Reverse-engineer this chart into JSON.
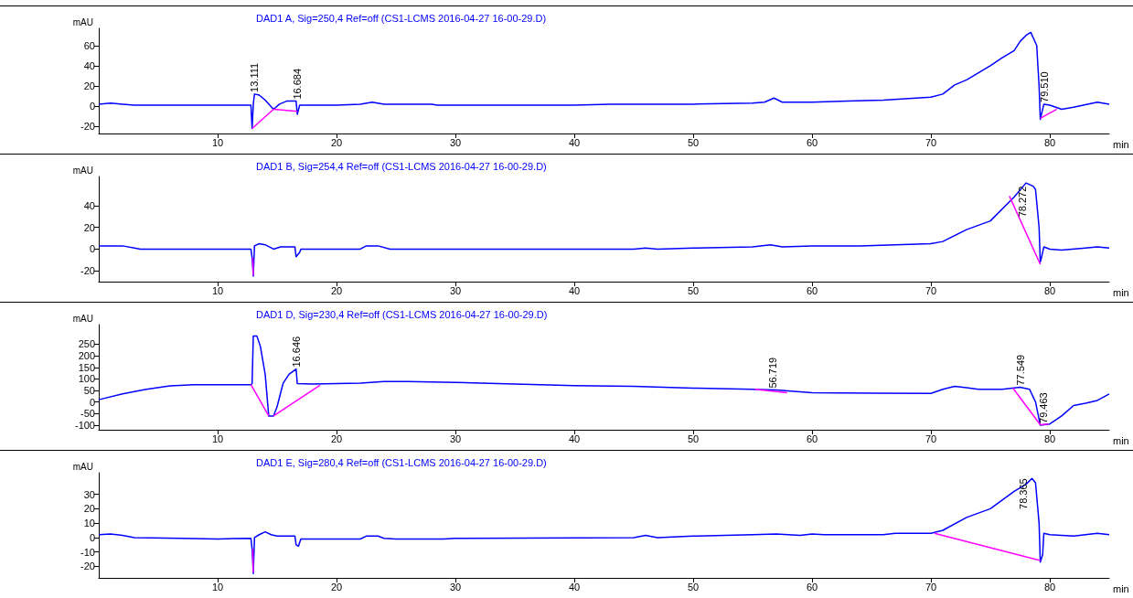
{
  "chart_data": [
    {
      "type": "line",
      "title": "DAD1 A, Sig=250,4 Ref=off (CS1-LCMS 2016-04-27 16-00-29.D)",
      "xlabel": "min",
      "ylabel": "mAU",
      "xlim": [
        0,
        85
      ],
      "xticks": [
        10,
        20,
        30,
        40,
        50,
        60,
        70,
        80
      ],
      "ylim": [
        -27,
        77
      ],
      "yticks": [
        -20,
        0,
        20,
        40,
        60
      ],
      "marker": "none",
      "line_style": "solid",
      "series": [
        {
          "color": "#0000ff",
          "x": [
            0,
            1,
            2,
            3,
            10,
            12.8,
            12.9,
            13.0,
            13.1,
            13.5,
            14,
            14.7,
            15.2,
            15.8,
            16.6,
            16.7,
            16.9,
            20,
            22,
            23,
            24,
            28,
            28.5,
            40,
            43,
            50,
            55,
            56,
            56.8,
            57.5,
            60,
            63,
            66,
            70,
            71,
            72,
            73,
            75,
            76,
            77,
            77.5,
            78,
            78.4,
            78.9,
            79.1,
            79.2,
            79.5,
            80,
            81,
            82,
            84,
            85
          ],
          "values": [
            2,
            3,
            2,
            1,
            1,
            1,
            -22,
            2,
            12,
            11,
            6,
            -3,
            2,
            5,
            5,
            -8,
            1,
            1,
            2,
            4,
            2,
            2,
            1,
            1,
            2,
            2,
            3,
            4,
            8,
            4,
            4,
            5,
            6,
            9,
            12,
            21,
            26,
            40,
            48,
            55,
            64,
            70,
            73,
            60,
            20,
            -13,
            2,
            1,
            -3,
            -1,
            4,
            2
          ]
        },
        {
          "color": "#ff00ff",
          "x": [
            12.9,
            14.7
          ],
          "values": [
            -22,
            -3
          ]
        },
        {
          "color": "#ff00ff",
          "x": [
            14.7,
            16.7
          ],
          "values": [
            -3,
            -5
          ]
        },
        {
          "color": "#ff00ff",
          "x": [
            79.2,
            80.6
          ],
          "values": [
            -12,
            -3
          ]
        }
      ],
      "annotations": [
        {
          "text": "13.111",
          "x": 13.111,
          "y": 12
        },
        {
          "text": "16.684",
          "x": 16.684,
          "y": 5
        },
        {
          "text": "79.510",
          "x": 79.51,
          "y": 2
        }
      ]
    },
    {
      "type": "line",
      "title": "DAD1 B, Sig=254,4 Ref=off (CS1-LCMS 2016-04-27 16-00-29.D)",
      "xlabel": "min",
      "ylabel": "mAU",
      "xlim": [
        0,
        85
      ],
      "xticks": [
        10,
        20,
        30,
        40,
        50,
        60,
        70,
        80
      ],
      "ylim": [
        -30,
        67
      ],
      "yticks": [
        -20,
        0,
        20,
        40
      ],
      "marker": "none",
      "line_style": "solid",
      "series": [
        {
          "color": "#0000ff",
          "x": [
            0,
            2,
            3,
            3.5,
            12.8,
            12.9,
            13.0,
            13.1,
            13.5,
            14,
            14.7,
            15.3,
            16.5,
            16.6,
            16.9,
            17,
            22,
            22.5,
            23.5,
            24.5,
            45,
            46,
            47,
            50,
            55,
            56.5,
            57.5,
            60,
            64,
            67,
            70,
            71,
            73,
            75,
            77,
            78,
            78.6,
            78.8,
            79.1,
            79.2,
            79.3,
            79.5,
            80,
            81,
            83,
            84,
            85
          ],
          "values": [
            3,
            3,
            1,
            0,
            0,
            -8,
            -25,
            3,
            5,
            4,
            0,
            2,
            2,
            -7,
            -3,
            0,
            0,
            3,
            3,
            0,
            0,
            1,
            0,
            1,
            2,
            4,
            2,
            3,
            3,
            4,
            5,
            7,
            18,
            26,
            48,
            61,
            58,
            55,
            20,
            -12,
            -8,
            2,
            0,
            -1,
            1,
            2,
            1
          ]
        },
        {
          "color": "#ff00ff",
          "x": [
            76.6,
            79.2
          ],
          "values": [
            49,
            -14
          ]
        },
        {
          "color": "#ff00ff",
          "x": [
            12.95,
            13.0
          ],
          "values": [
            -8,
            -24
          ]
        }
      ],
      "annotations": [
        {
          "text": "78.272",
          "x": 78.272,
          "y": 58
        }
      ]
    },
    {
      "type": "line",
      "title": "DAD1 D, Sig=230,4 Ref=off (CS1-LCMS 2016-04-27 16-00-29.D)",
      "xlabel": "min",
      "ylabel": "mAU",
      "xlim": [
        0,
        85
      ],
      "xticks": [
        10,
        20,
        30,
        40,
        50,
        60,
        70,
        80
      ],
      "ylim": [
        -120,
        335
      ],
      "yticks": [
        -100,
        -50,
        0,
        50,
        100,
        150,
        200,
        250
      ],
      "marker": "none",
      "line_style": "solid",
      "series": [
        {
          "color": "#0000ff",
          "x": [
            0,
            2,
            4,
            6,
            8,
            12.8,
            12.9,
            13.0,
            13.3,
            13.6,
            14,
            14.3,
            14.7,
            15,
            15.5,
            16,
            16.6,
            16.7,
            18,
            20,
            22,
            24,
            26,
            30,
            35,
            40,
            45,
            50,
            55,
            57,
            60,
            65,
            70,
            71,
            72,
            73,
            74,
            76,
            77.5,
            78.3,
            78.8,
            79.2,
            80,
            81,
            82,
            83,
            84,
            85
          ],
          "values": [
            10,
            35,
            55,
            70,
            75,
            75,
            80,
            286,
            286,
            240,
            120,
            -61,
            -61,
            -20,
            80,
            120,
            143,
            80,
            78,
            80,
            82,
            89,
            89,
            85,
            78,
            71,
            68,
            60,
            55,
            52,
            40,
            38,
            37,
            55,
            68,
            62,
            55,
            55,
            64,
            55,
            0,
            -100,
            -95,
            -60,
            -15,
            -5,
            7,
            35
          ]
        },
        {
          "color": "#ff00ff",
          "x": [
            12.8,
            14.3
          ],
          "values": [
            75,
            -60
          ]
        },
        {
          "color": "#ff00ff",
          "x": [
            14.7,
            18.6
          ],
          "values": [
            -60,
            72
          ]
        },
        {
          "color": "#ff00ff",
          "x": [
            55.2,
            57.9
          ],
          "values": [
            55,
            40
          ]
        },
        {
          "color": "#ff00ff",
          "x": [
            76.9,
            79.2,
            79.9
          ],
          "values": [
            60,
            -98,
            -95
          ]
        }
      ],
      "annotations": [
        {
          "text": "16.646",
          "x": 16.646,
          "y": 143
        },
        {
          "text": "56.719",
          "x": 56.719,
          "y": 52
        },
        {
          "text": "77.549",
          "x": 77.549,
          "y": 64
        },
        {
          "text": "79.463",
          "x": 79.463,
          "y": -100
        }
      ]
    },
    {
      "type": "line",
      "title": "DAD1 E, Sig=280,4 Ref=off (CS1-LCMS 2016-04-27 16-00-29.D)",
      "xlabel": "min",
      "ylabel": "mAU",
      "xlim": [
        0,
        85
      ],
      "xticks": [
        10,
        20,
        30,
        40,
        50,
        60,
        70,
        80
      ],
      "ylim": [
        -28,
        45
      ],
      "yticks": [
        -20,
        -10,
        0,
        10,
        20,
        30
      ],
      "marker": "none",
      "line_style": "solid",
      "series": [
        {
          "color": "#0000ff",
          "x": [
            0,
            1,
            2,
            3,
            7,
            10,
            12.8,
            12.9,
            13.0,
            13.1,
            13.5,
            14,
            14.5,
            15,
            16.5,
            16.6,
            16.8,
            17,
            22,
            22.5,
            23.5,
            24,
            25,
            29,
            30,
            45,
            46,
            47,
            50,
            55,
            57,
            59,
            60,
            61,
            66,
            67,
            70,
            71,
            73,
            75,
            77,
            78,
            78.5,
            78.8,
            79.1,
            79.2,
            79.4,
            79.5,
            80,
            82,
            84,
            85
          ],
          "values": [
            2,
            2.5,
            1.5,
            0,
            -0.5,
            -1,
            -0.5,
            -8,
            -25,
            0,
            2,
            4,
            2,
            1,
            1,
            -5,
            -6,
            -1,
            -1,
            1,
            1,
            -0.5,
            -1,
            -1,
            -0.5,
            0,
            1.5,
            0,
            1,
            2,
            2.5,
            1.5,
            2.5,
            2,
            2,
            3,
            3,
            5,
            14,
            20,
            32,
            37,
            41,
            38,
            10,
            -17,
            -12,
            3,
            2,
            1,
            3,
            2
          ]
        },
        {
          "color": "#ff00ff",
          "x": [
            70.3,
            79.2
          ],
          "values": [
            3,
            -16
          ]
        },
        {
          "color": "#ff00ff",
          "x": [
            12.95,
            13.0
          ],
          "values": [
            -8,
            -24
          ]
        }
      ],
      "annotations": [
        {
          "text": "78.365",
          "x": 78.365,
          "y": 41
        }
      ]
    }
  ]
}
